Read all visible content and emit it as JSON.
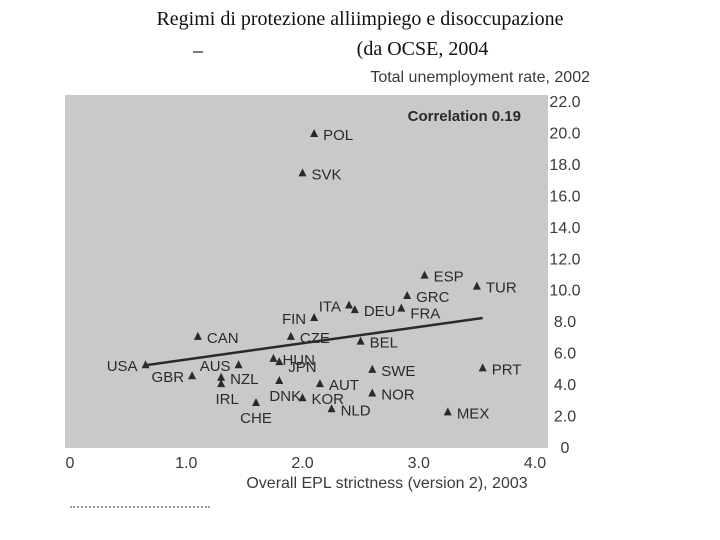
{
  "page": {
    "title_line1": "Regimi di protezione alliimpiego e disoccupazione",
    "title_line2": "(da OCSE, 2004"
  },
  "colors": {
    "panel": "#c9c9c9",
    "ink": "#2a2a2a",
    "text": "#3a3a3a"
  },
  "chart_data": {
    "type": "scatter",
    "title": "Correlation 0.19",
    "xlabel": "Overall EPL strictness (version 2), 2003",
    "ylabel": "Total unemployment rate, 2002",
    "xlim": [
      0,
      4.0
    ],
    "ylim": [
      0,
      22.0
    ],
    "xticks": [
      "0",
      "1.0",
      "2.0",
      "3.0",
      "4.0"
    ],
    "yticks": [
      "0",
      "2.0",
      "4.0",
      "6.0",
      "8.0",
      "10.0",
      "12.0",
      "14.0",
      "16.0",
      "18.0",
      "20.0",
      "22.0"
    ],
    "points": [
      {
        "label": "POL",
        "x": 2.1,
        "y": 19.9,
        "anchor": "right"
      },
      {
        "label": "SVK",
        "x": 2.0,
        "y": 17.4,
        "anchor": "right"
      },
      {
        "label": "ESP",
        "x": 3.05,
        "y": 10.9,
        "anchor": "right"
      },
      {
        "label": "TUR",
        "x": 3.5,
        "y": 10.2,
        "anchor": "right"
      },
      {
        "label": "GRC",
        "x": 2.9,
        "y": 9.6,
        "anchor": "right"
      },
      {
        "label": "FRA",
        "x": 2.85,
        "y": 8.8,
        "anchor": "right-low"
      },
      {
        "label": "ITA",
        "x": 2.4,
        "y": 9.0,
        "anchor": "left"
      },
      {
        "label": "DEU",
        "x": 2.45,
        "y": 8.7,
        "anchor": "right"
      },
      {
        "label": "FIN",
        "x": 2.1,
        "y": 8.2,
        "anchor": "left"
      },
      {
        "label": "CAN",
        "x": 1.1,
        "y": 7.0,
        "anchor": "right"
      },
      {
        "label": "CZE",
        "x": 1.9,
        "y": 7.0,
        "anchor": "right"
      },
      {
        "label": "BEL",
        "x": 2.5,
        "y": 6.7,
        "anchor": "right"
      },
      {
        "label": "USA",
        "x": 0.65,
        "y": 5.2,
        "anchor": "left"
      },
      {
        "label": "AUS",
        "x": 1.45,
        "y": 5.2,
        "anchor": "left"
      },
      {
        "label": "HUN",
        "x": 1.75,
        "y": 5.6,
        "anchor": "right"
      },
      {
        "label": "JPN",
        "x": 1.8,
        "y": 5.4,
        "anchor": "right-low"
      },
      {
        "label": "GBR",
        "x": 1.05,
        "y": 4.5,
        "anchor": "left"
      },
      {
        "label": "NZL",
        "x": 1.3,
        "y": 4.4,
        "anchor": "right"
      },
      {
        "label": "IRL",
        "x": 1.3,
        "y": 4.0,
        "anchor": "below-left"
      },
      {
        "label": "SWE",
        "x": 2.6,
        "y": 4.9,
        "anchor": "right"
      },
      {
        "label": "PRT",
        "x": 3.55,
        "y": 5.0,
        "anchor": "right"
      },
      {
        "label": "AUT",
        "x": 2.15,
        "y": 4.0,
        "anchor": "right"
      },
      {
        "label": "DNK",
        "x": 1.8,
        "y": 4.2,
        "anchor": "below-left"
      },
      {
        "label": "KOR",
        "x": 2.0,
        "y": 3.1,
        "anchor": "right"
      },
      {
        "label": "NOR",
        "x": 2.6,
        "y": 3.4,
        "anchor": "right"
      },
      {
        "label": "CHE",
        "x": 1.6,
        "y": 2.8,
        "anchor": "below"
      },
      {
        "label": "NLD",
        "x": 2.25,
        "y": 2.4,
        "anchor": "right"
      },
      {
        "label": "MEX",
        "x": 3.25,
        "y": 2.2,
        "anchor": "right"
      }
    ],
    "trendline": {
      "x": [
        0.65,
        3.55
      ],
      "y": [
        5.2,
        8.2
      ]
    }
  }
}
